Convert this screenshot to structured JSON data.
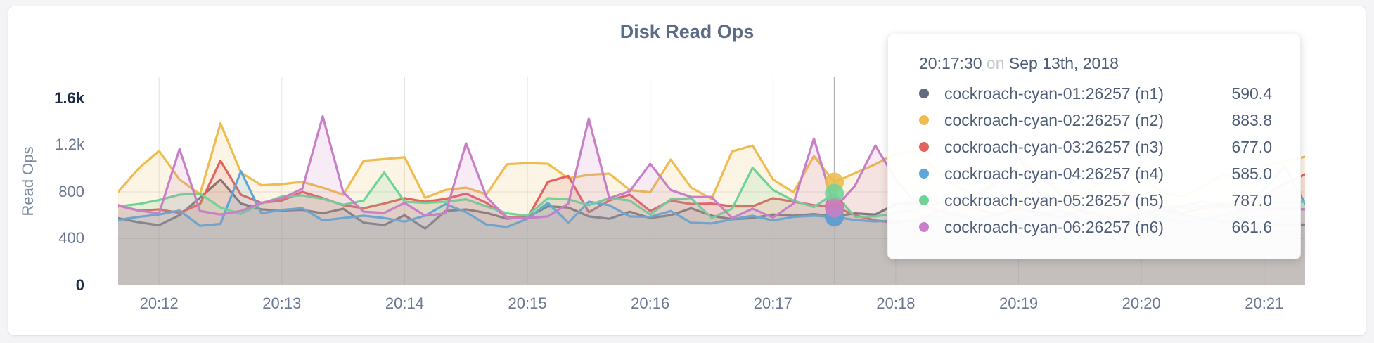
{
  "panel": {
    "background": "#ffffff",
    "border": "#e4e4e6",
    "page_background": "#f4f4f6"
  },
  "tooltip": {
    "time": "20:17:30",
    "on_word": "on",
    "date": "Sep 13th, 2018",
    "rows": [
      {
        "label": "cockroach-cyan-01:26257 (n1)",
        "value": "590.4",
        "color": "#626a7d"
      },
      {
        "label": "cockroach-cyan-02:26257 (n2)",
        "value": "883.8",
        "color": "#eebc4f"
      },
      {
        "label": "cockroach-cyan-03:26257 (n3)",
        "value": "677.0",
        "color": "#e2635e"
      },
      {
        "label": "cockroach-cyan-04:26257 (n4)",
        "value": "585.0",
        "color": "#5ea5d9"
      },
      {
        "label": "cockroach-cyan-05:26257 (n5)",
        "value": "787.0",
        "color": "#70d396"
      },
      {
        "label": "cockroach-cyan-06:26257 (n6)",
        "value": "661.6",
        "color": "#c87fc5"
      }
    ]
  },
  "chart_data": {
    "type": "area",
    "title": "Disk Read Ops",
    "ylabel": "Read Ops",
    "ylim": [
      0,
      1600
    ],
    "y_headroom_max": 1780,
    "grid": true,
    "grid_y_values": [
      400,
      800,
      1200
    ],
    "x_start_time": "20:11:40",
    "x_step_seconds": 10,
    "x_total_seconds": 580,
    "hover_time": "20:17:30",
    "hover_index": 35,
    "yticks": [
      {
        "value": 0,
        "label": "0",
        "strong": true
      },
      {
        "value": 400,
        "label": "400",
        "strong": false
      },
      {
        "value": 800,
        "label": "800",
        "strong": false
      },
      {
        "value": 1200,
        "label": "1.2k",
        "strong": false
      },
      {
        "value": 1600,
        "label": "1.6k",
        "strong": true
      }
    ],
    "xticks": [
      {
        "t": 20,
        "label": "20:12"
      },
      {
        "t": 80,
        "label": "20:13"
      },
      {
        "t": 140,
        "label": "20:14"
      },
      {
        "t": 200,
        "label": "20:15"
      },
      {
        "t": 260,
        "label": "20:16"
      },
      {
        "t": 320,
        "label": "20:17"
      },
      {
        "t": 380,
        "label": "20:18"
      },
      {
        "t": 440,
        "label": "20:19"
      },
      {
        "t": 500,
        "label": "20:20"
      },
      {
        "t": 560,
        "label": "20:21"
      }
    ],
    "series": [
      {
        "name": "cockroach-cyan-01:26257 (n1)",
        "color": "#626a7d",
        "values": [
          575,
          540,
          515,
          600,
          750,
          905,
          700,
          650,
          640,
          646,
          616,
          656,
          536,
          516,
          600,
          486,
          636,
          650,
          620,
          570,
          586,
          676,
          666,
          590,
          570,
          630,
          576,
          600,
          660,
          596,
          566,
          576,
          606,
          596,
          610,
          590.4,
          616,
          606,
          696,
          706,
          650,
          600,
          560,
          610,
          660,
          620,
          580,
          640,
          600,
          560,
          610,
          650,
          600,
          570,
          540,
          560,
          530,
          520,
          520
        ]
      },
      {
        "name": "cockroach-cyan-02:26257 (n2)",
        "color": "#eebc4f",
        "values": [
          800,
          1000,
          1150,
          906,
          780,
          1386,
          966,
          856,
          866,
          886,
          836,
          776,
          1066,
          1080,
          1096,
          750,
          816,
          836,
          780,
          1036,
          1046,
          1040,
          916,
          946,
          956,
          816,
          796,
          1076,
          836,
          740,
          1146,
          1196,
          906,
          796,
          1106,
          883.8,
          960,
          1036,
          1126,
          1150,
          980,
          840,
          780,
          900,
          1080,
          950,
          820,
          760,
          880,
          1000,
          920,
          800,
          760,
          850,
          950,
          900,
          1020,
          1060,
          1100
        ]
      },
      {
        "name": "cockroach-cyan-03:26257 (n3)",
        "color": "#e2635e",
        "values": [
          686,
          640,
          650,
          620,
          696,
          1066,
          776,
          706,
          726,
          800,
          746,
          686,
          660,
          700,
          746,
          716,
          740,
          786,
          706,
          586,
          576,
          886,
          936,
          626,
          726,
          776,
          636,
          726,
          696,
          700,
          676,
          676,
          746,
          716,
          686,
          677,
          600,
          556,
          536,
          560,
          620,
          700,
          650,
          600,
          680,
          750,
          700,
          640,
          720,
          800,
          740,
          680,
          620,
          660,
          700,
          720,
          770,
          870,
          950
        ]
      },
      {
        "name": "cockroach-cyan-04:26257 (n4)",
        "color": "#5ea5d9",
        "values": [
          560,
          586,
          606,
          640,
          510,
          526,
          976,
          616,
          646,
          660,
          556,
          576,
          596,
          576,
          546,
          596,
          696,
          626,
          520,
          500,
          570,
          706,
          536,
          716,
          686,
          590,
          586,
          636,
          536,
          530,
          566,
          596,
          556,
          586,
          596,
          585,
          560,
          546,
          556,
          540,
          580,
          620,
          560,
          520,
          560,
          600,
          640,
          580,
          540,
          580,
          620,
          580,
          540,
          560,
          600,
          650,
          820,
          1020,
          700
        ]
      },
      {
        "name": "cockroach-cyan-05:26257 (n5)",
        "color": "#70d396",
        "values": [
          676,
          696,
          730,
          776,
          786,
          666,
          610,
          700,
          760,
          770,
          740,
          690,
          726,
          966,
          716,
          706,
          716,
          736,
          676,
          616,
          596,
          746,
          736,
          686,
          746,
          726,
          606,
          736,
          746,
          576,
          656,
          1006,
          816,
          726,
          670,
          787,
          586,
          590,
          616,
          650,
          700,
          760,
          700,
          650,
          800,
          950,
          780,
          700,
          660,
          700,
          740,
          700,
          660,
          680,
          700,
          690,
          700,
          710,
          715
        ]
      },
      {
        "name": "cockroach-cyan-06:26257 (n6)",
        "color": "#c87fc5",
        "values": [
          682,
          640,
          616,
          1166,
          636,
          606,
          636,
          706,
          746,
          826,
          1446,
          796,
          630,
          620,
          706,
          596,
          616,
          1216,
          756,
          576,
          576,
          590,
          700,
          1426,
          746,
          806,
          1040,
          816,
          756,
          756,
          576,
          656,
          580,
          700,
          1256,
          661.6,
          850,
          1196,
          906,
          700,
          640,
          680,
          750,
          900,
          1100,
          800,
          700,
          650,
          700,
          760,
          700,
          650,
          680,
          720,
          680,
          660,
          650,
          655,
          650
        ]
      }
    ],
    "colors": {
      "grid_line": "#e3e3e3",
      "hover_line": "#b3b3b3",
      "baseline": "#dcdcdc"
    }
  }
}
